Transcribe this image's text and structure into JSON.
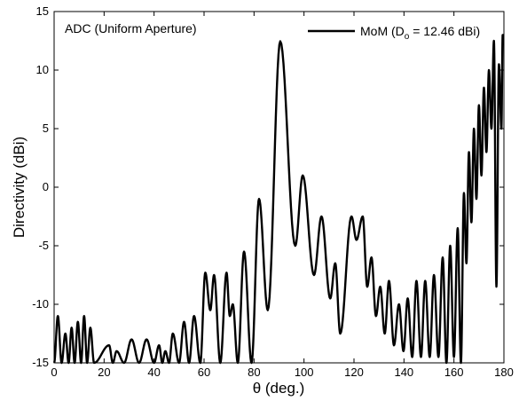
{
  "chart_data": {
    "type": "line",
    "title": "",
    "xlabel": "θ (deg.)",
    "ylabel": "Directivity (dBi)",
    "xlim": [
      0,
      180
    ],
    "ylim": [
      -15,
      15
    ],
    "xticks": [
      0,
      20,
      40,
      60,
      80,
      100,
      120,
      140,
      160,
      180
    ],
    "yticks": [
      -15,
      -10,
      -5,
      0,
      5,
      10,
      15
    ],
    "grid": false,
    "legend_position": "top-right",
    "annotation": "ADC (Uniform Aperture)",
    "series": [
      {
        "name": "MoM (D",
        "name_subscript": "o",
        "name_suffix": " = 12.46 dBi)",
        "color": "#000000",
        "peaks": [
          {
            "x": 1.5,
            "y": -11
          },
          {
            "x": 4.5,
            "y": -12.5
          },
          {
            "x": 7,
            "y": -12
          },
          {
            "x": 9.5,
            "y": -11.5
          },
          {
            "x": 12,
            "y": -11
          },
          {
            "x": 14.5,
            "y": -12
          },
          {
            "x": 22,
            "y": -13.5
          },
          {
            "x": 25,
            "y": -14
          },
          {
            "x": 31,
            "y": -13
          },
          {
            "x": 37,
            "y": -13
          },
          {
            "x": 42,
            "y": -13.5
          },
          {
            "x": 44.5,
            "y": -14
          },
          {
            "x": 47.5,
            "y": -12.5
          },
          {
            "x": 52,
            "y": -11.5
          },
          {
            "x": 56,
            "y": -11
          },
          {
            "x": 60.5,
            "y": -7.3
          },
          {
            "x": 64,
            "y": -7.5
          },
          {
            "x": 69,
            "y": -7.3
          },
          {
            "x": 71.5,
            "y": -10
          },
          {
            "x": 76,
            "y": -5.5
          },
          {
            "x": 82,
            "y": -1
          },
          {
            "x": 90.5,
            "y": 12.46
          },
          {
            "x": 99.5,
            "y": 1
          },
          {
            "x": 107,
            "y": -2.5
          },
          {
            "x": 112.5,
            "y": -6.5
          },
          {
            "x": 119,
            "y": -2.5
          },
          {
            "x": 123.5,
            "y": -2.5
          },
          {
            "x": 127,
            "y": -6
          },
          {
            "x": 130.5,
            "y": -8.5
          },
          {
            "x": 134,
            "y": -8
          },
          {
            "x": 138,
            "y": -10
          },
          {
            "x": 141.5,
            "y": -9.5
          },
          {
            "x": 145,
            "y": -8
          },
          {
            "x": 148.5,
            "y": -8
          },
          {
            "x": 152,
            "y": -7.5
          },
          {
            "x": 155.5,
            "y": -6
          },
          {
            "x": 158.5,
            "y": -5
          },
          {
            "x": 161.5,
            "y": -3.5
          },
          {
            "x": 164,
            "y": -0.5
          },
          {
            "x": 166,
            "y": 3
          },
          {
            "x": 168,
            "y": 5
          },
          {
            "x": 170,
            "y": 7
          },
          {
            "x": 172,
            "y": 8.5
          },
          {
            "x": 174,
            "y": 10
          },
          {
            "x": 176,
            "y": 12.5
          },
          {
            "x": 178,
            "y": 10.5
          },
          {
            "x": 179.5,
            "y": 13
          }
        ],
        "nulls": [
          {
            "x": 3,
            "y": -15
          },
          {
            "x": 5.8,
            "y": -15
          },
          {
            "x": 8.2,
            "y": -15
          },
          {
            "x": 10.8,
            "y": -15
          },
          {
            "x": 13.2,
            "y": -15
          },
          {
            "x": 16,
            "y": -15
          },
          {
            "x": 23.5,
            "y": -15
          },
          {
            "x": 28,
            "y": -15
          },
          {
            "x": 34,
            "y": -15
          },
          {
            "x": 40,
            "y": -15
          },
          {
            "x": 43.3,
            "y": -15
          },
          {
            "x": 46,
            "y": -15
          },
          {
            "x": 50,
            "y": -15
          },
          {
            "x": 54,
            "y": -15
          },
          {
            "x": 58.5,
            "y": -15
          },
          {
            "x": 62.5,
            "y": -10.5
          },
          {
            "x": 66.5,
            "y": -15
          },
          {
            "x": 70.3,
            "y": -11
          },
          {
            "x": 73.5,
            "y": -15
          },
          {
            "x": 79,
            "y": -15
          },
          {
            "x": 85.5,
            "y": -10.5
          },
          {
            "x": 96.5,
            "y": -5
          },
          {
            "x": 104,
            "y": -7.5
          },
          {
            "x": 110.5,
            "y": -9.5
          },
          {
            "x": 114.5,
            "y": -12.5
          },
          {
            "x": 121,
            "y": -4.5
          },
          {
            "x": 125.3,
            "y": -8.5
          },
          {
            "x": 128.8,
            "y": -11
          },
          {
            "x": 132.3,
            "y": -12.5
          },
          {
            "x": 136,
            "y": -13.5
          },
          {
            "x": 139.8,
            "y": -14
          },
          {
            "x": 143.3,
            "y": -14.5
          },
          {
            "x": 146.8,
            "y": -14.5
          },
          {
            "x": 150.3,
            "y": -14.5
          },
          {
            "x": 153.8,
            "y": -14.5
          },
          {
            "x": 157,
            "y": -15
          },
          {
            "x": 160,
            "y": -14.5
          },
          {
            "x": 162.8,
            "y": -15
          },
          {
            "x": 165,
            "y": -6.5
          },
          {
            "x": 167,
            "y": -3
          },
          {
            "x": 169,
            "y": -1
          },
          {
            "x": 171,
            "y": 1
          },
          {
            "x": 173,
            "y": 3
          },
          {
            "x": 175,
            "y": 5
          },
          {
            "x": 177,
            "y": -8.5
          },
          {
            "x": 179,
            "y": 5
          }
        ]
      }
    ]
  }
}
